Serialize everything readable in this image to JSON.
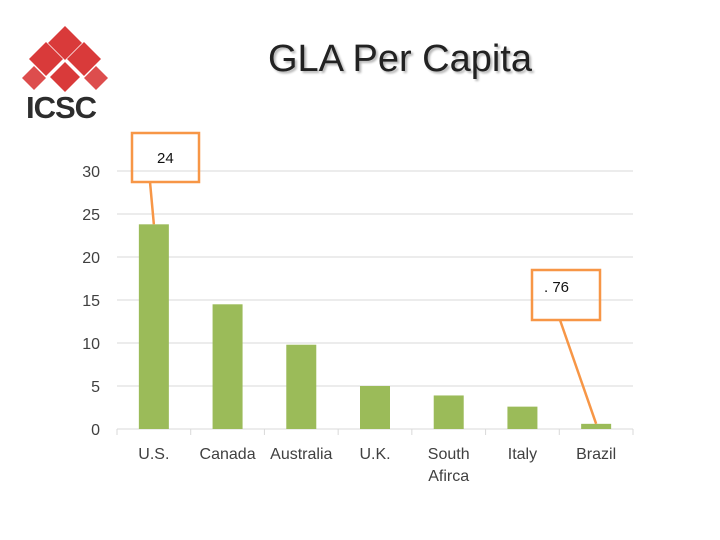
{
  "title": "GLA Per Capita",
  "logo": {
    "text": "ICSC"
  },
  "colors": {
    "bar": "#9bbb59",
    "grid": "#d9d9d9",
    "callout": "#f79646",
    "logo_red": "#d93a3a"
  },
  "chart_data": {
    "type": "bar",
    "title": "GLA Per Capita",
    "xlabel": "",
    "ylabel": "",
    "categories": [
      "U.S.",
      "Canada",
      "Australia",
      "U.K.",
      "South Africa",
      "Italy",
      "Brazil"
    ],
    "category_lines": [
      [
        "U.S."
      ],
      [
        "Canada"
      ],
      [
        "Australia"
      ],
      [
        "U.K."
      ],
      [
        "South",
        "Afirca"
      ],
      [
        "Italy"
      ],
      [
        "Brazil"
      ]
    ],
    "values": [
      23.8,
      14.5,
      9.8,
      5.0,
      3.9,
      2.6,
      0.6
    ],
    "ylim": [
      0,
      30
    ],
    "yticks": [
      0,
      5,
      10,
      15,
      20,
      25,
      30
    ],
    "grid": true,
    "legend": "none",
    "annotations": [
      {
        "text": "24",
        "category": "U.S."
      },
      {
        "text": ". 76",
        "category": "Brazil"
      }
    ]
  }
}
